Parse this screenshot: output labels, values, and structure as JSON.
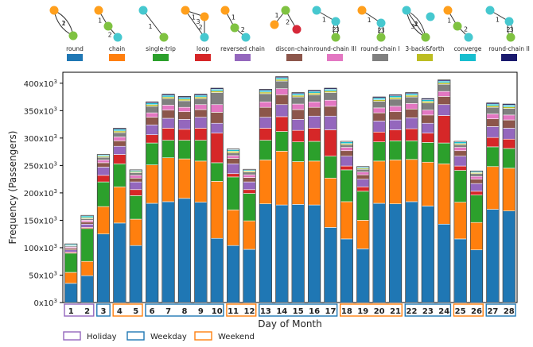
{
  "chart_data": {
    "type": "bar",
    "stacked": true,
    "xlabel": "Day of Month",
    "ylabel": "Frequency (Passengers)",
    "ylim": [
      0,
      420000
    ],
    "y_ticks": [
      0,
      50000,
      100000,
      150000,
      200000,
      250000,
      300000,
      350000,
      400000
    ],
    "y_tick_labels": [
      "0x10",
      "50x10",
      "100x10",
      "150x10",
      "200x10",
      "250x10",
      "300x10",
      "350x10",
      "400x10"
    ],
    "y_tick_exponent": "3",
    "categories": [
      "1",
      "2",
      "3",
      "4",
      "5",
      "6",
      "7",
      "8",
      "9",
      "10",
      "11",
      "12",
      "13",
      "14",
      "15",
      "16",
      "17",
      "18",
      "19",
      "20",
      "21",
      "22",
      "23",
      "24",
      "25",
      "26",
      "27",
      "28"
    ],
    "day_types": [
      "Holiday",
      "Holiday",
      "Weekday",
      "Weekend",
      "Weekend",
      "Weekday",
      "Weekday",
      "Weekday",
      "Weekday",
      "Weekday",
      "Weekend",
      "Weekend",
      "Weekday",
      "Weekday",
      "Weekday",
      "Weekday",
      "Weekday",
      "Weekend",
      "Weekend",
      "Weekend",
      "Weekend",
      "Weekday",
      "Weekday",
      "Weekday",
      "Weekend",
      "Weekend",
      "Weekday",
      "Weekday"
    ],
    "day_type_colors": {
      "Holiday": "#9467bd",
      "Weekday": "#1f77b4",
      "Weekend": "#ff7f0e"
    },
    "day_type_legend": [
      "Holiday",
      "Weekday",
      "Weekend"
    ],
    "series": [
      {
        "name": "round",
        "color": "#1f77b4",
        "values": [
          35000,
          49000,
          125000,
          145000,
          104000,
          181000,
          184000,
          190000,
          183000,
          117000,
          104000,
          97000,
          180000,
          178000,
          179000,
          178000,
          137000,
          116000,
          98000,
          181000,
          180000,
          184000,
          176000,
          143000,
          116000,
          96000,
          170000,
          167000
        ]
      },
      {
        "name": "chain",
        "color": "#ff7f0e",
        "values": [
          20000,
          26000,
          50000,
          66000,
          48000,
          70000,
          80000,
          72000,
          75000,
          104000,
          65000,
          52000,
          80000,
          98000,
          78000,
          80000,
          90000,
          68000,
          52000,
          77000,
          80000,
          77000,
          80000,
          110000,
          67000,
          50000,
          78000,
          78000
        ]
      },
      {
        "name": "single-trip",
        "color": "#2ca02c",
        "values": [
          35000,
          60000,
          45000,
          42000,
          43000,
          40000,
          32000,
          34000,
          38000,
          34000,
          60000,
          50000,
          36000,
          36000,
          36000,
          36000,
          40000,
          58000,
          53000,
          35000,
          35000,
          34000,
          36000,
          38000,
          58000,
          50000,
          36000,
          36000
        ]
      },
      {
        "name": "loop",
        "color": "#d62728",
        "values": [
          2000,
          2000,
          12000,
          17000,
          11000,
          15000,
          22000,
          20000,
          22000,
          54000,
          6000,
          7000,
          22000,
          27000,
          21000,
          24000,
          48000,
          7000,
          8000,
          18000,
          20000,
          22000,
          17000,
          50000,
          8000,
          7000,
          17000,
          17000
        ]
      },
      {
        "name": "reversed chain",
        "color": "#9467bd",
        "values": [
          4000,
          6000,
          15000,
          15000,
          14000,
          18000,
          18000,
          18000,
          20000,
          18000,
          18000,
          14000,
          20000,
          22000,
          20000,
          22000,
          25000,
          18000,
          14000,
          20000,
          18000,
          20000,
          18000,
          20000,
          18000,
          14000,
          20000,
          20000
        ]
      },
      {
        "name": "discon-chain",
        "color": "#8c564b",
        "values": [
          3000,
          4000,
          8000,
          10000,
          7000,
          14000,
          15000,
          14000,
          14000,
          20000,
          10000,
          8000,
          18000,
          18000,
          18000,
          16000,
          18000,
          10000,
          8000,
          15000,
          15000,
          16000,
          15000,
          15000,
          10000,
          8000,
          14000,
          15000
        ]
      },
      {
        "name": "round-chain III",
        "color": "#e377c2",
        "values": [
          2000,
          3000,
          5000,
          7000,
          5000,
          8000,
          9000,
          8000,
          9000,
          14000,
          5000,
          5000,
          10000,
          11000,
          10000,
          10000,
          11000,
          6000,
          5000,
          9000,
          10000,
          10000,
          9000,
          9000,
          6000,
          5000,
          9000,
          9000
        ]
      },
      {
        "name": "round-chain I",
        "color": "#7f7f7f",
        "values": [
          2000,
          3000,
          5000,
          8000,
          5000,
          12000,
          12000,
          12000,
          11000,
          22000,
          5000,
          5000,
          15000,
          14000,
          13000,
          13000,
          14000,
          5000,
          5000,
          12000,
          13000,
          12000,
          13000,
          13000,
          5000,
          5000,
          12000,
          12000
        ]
      },
      {
        "name": "3-back&forth",
        "color": "#bcbd22",
        "values": [
          1000,
          2000,
          2000,
          3000,
          2000,
          3000,
          3000,
          3000,
          3000,
          3000,
          3000,
          2000,
          3000,
          3000,
          3000,
          3000,
          3000,
          2000,
          2000,
          3000,
          3000,
          3000,
          3000,
          3000,
          2000,
          2000,
          3000,
          3000
        ]
      },
      {
        "name": "converge",
        "color": "#17becf",
        "values": [
          2000,
          3000,
          2000,
          3000,
          2000,
          3000,
          3000,
          3000,
          3000,
          3000,
          3000,
          2000,
          3000,
          3000,
          3000,
          3000,
          3000,
          3000,
          2000,
          3000,
          3000,
          3000,
          3000,
          3000,
          3000,
          2000,
          3000,
          3000
        ]
      },
      {
        "name": "round-chain II",
        "color": "#1a1a6e",
        "values": [
          1000,
          1000,
          1000,
          2000,
          1000,
          2000,
          2000,
          2000,
          2000,
          2000,
          1000,
          1000,
          2000,
          2000,
          2000,
          2000,
          2000,
          1000,
          1000,
          2000,
          2000,
          2000,
          2000,
          2000,
          1000,
          1000,
          2000,
          2000
        ]
      }
    ],
    "motif_numbers": {
      "round": [
        "1",
        "2"
      ],
      "chain": [
        "1",
        "2"
      ],
      "single-trip": [
        "1"
      ],
      "loop": [
        "1",
        "2",
        "3"
      ],
      "reversed chain": [
        "1",
        "2"
      ],
      "discon-chain": [
        "1",
        "2"
      ],
      "round-chain III": [
        "1",
        "2",
        "3"
      ],
      "round-chain I": [
        "1",
        "2",
        "3"
      ],
      "3-back&forth": [
        "1",
        "2",
        "3"
      ],
      "converge": [
        "1",
        "2"
      ],
      "round-chain II": [
        "1",
        "2",
        "3"
      ]
    }
  }
}
